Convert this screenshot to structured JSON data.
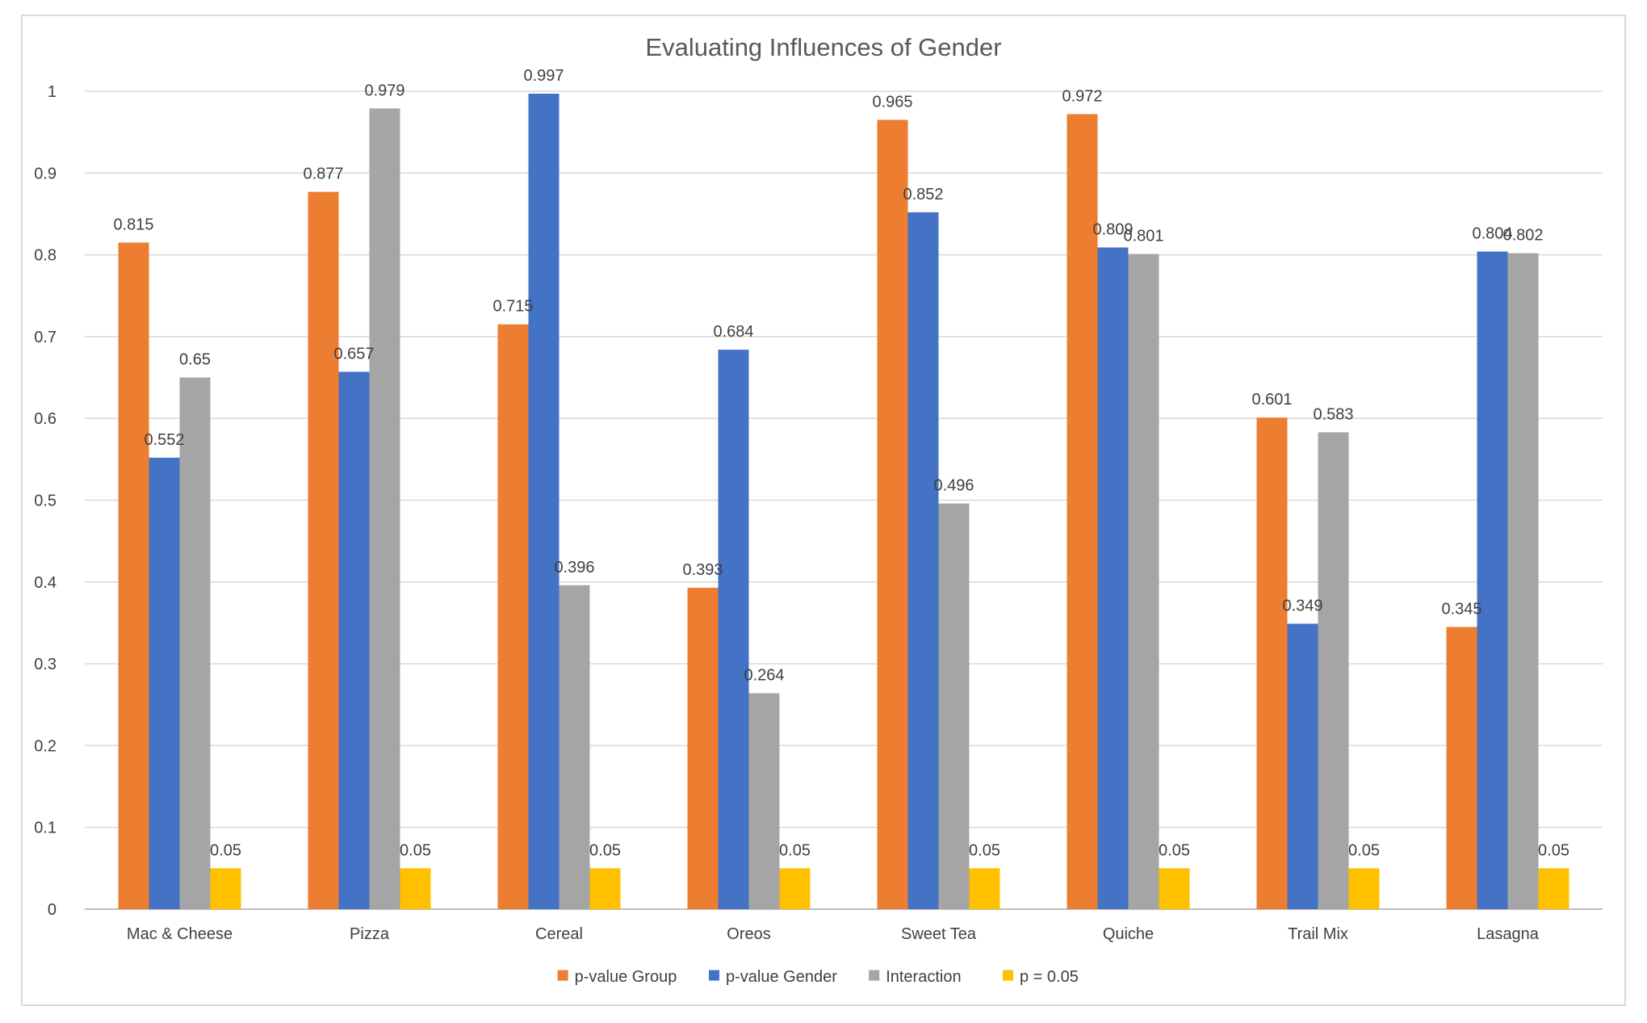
{
  "chart_data": {
    "type": "bar",
    "title": "Evaluating Influences of Gender",
    "xlabel": "",
    "ylabel": "",
    "ylim": [
      0,
      1
    ],
    "yticks": [
      "0",
      "0.1",
      "0.2",
      "0.3",
      "0.4",
      "0.5",
      "0.6",
      "0.7",
      "0.8",
      "0.9",
      "1"
    ],
    "grid": true,
    "legend_position": "bottom",
    "categories": [
      "Mac & Cheese",
      "Pizza",
      "Cereal",
      "Oreos",
      "Sweet Tea",
      "Quiche",
      "Trail Mix",
      "Lasagna"
    ],
    "series": [
      {
        "name": "p-value Group",
        "color": "#ED7D31",
        "values": [
          0.815,
          0.877,
          0.715,
          0.393,
          0.965,
          0.972,
          0.601,
          0.345
        ],
        "labels": [
          "0.815",
          "0.877",
          "0.715",
          "0.393",
          "0.965",
          "0.972",
          "0.601",
          "0.345"
        ]
      },
      {
        "name": "p-value Gender",
        "color": "#4472C4",
        "values": [
          0.552,
          0.657,
          0.997,
          0.684,
          0.852,
          0.809,
          0.349,
          0.804
        ],
        "labels": [
          "0.552",
          "0.657",
          "0.997",
          "0.684",
          "0.852",
          "0.809",
          "0.349",
          "0.804"
        ]
      },
      {
        "name": "Interaction",
        "color": "#A5A5A5",
        "values": [
          0.65,
          0.979,
          0.396,
          0.264,
          0.496,
          0.801,
          0.583,
          0.802
        ],
        "labels": [
          "0.65",
          "0.979",
          "0.396",
          "0.264",
          "0.496",
          "0.801",
          "0.583",
          "0.802"
        ]
      },
      {
        "name": "p = 0.05",
        "color": "#FFC000",
        "values": [
          0.05,
          0.05,
          0.05,
          0.05,
          0.05,
          0.05,
          0.05,
          0.05
        ],
        "labels": [
          "0.05",
          "0.05",
          "0.05",
          "0.05",
          "0.05",
          "0.05",
          "0.05",
          "0.05"
        ]
      }
    ]
  }
}
